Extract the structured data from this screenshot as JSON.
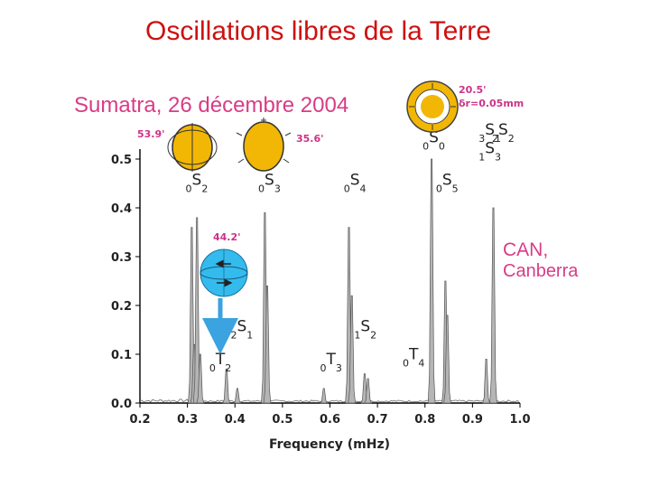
{
  "slide": {
    "title": "Oscillations libres de la Terre"
  },
  "event": {
    "title": "Sumatra, 26 décembre 2004"
  },
  "station": {
    "line1": "CAN,",
    "line2": "Canberra"
  },
  "chart_data": {
    "type": "line",
    "xlabel": "Frequency (mHz)",
    "ylabel": "",
    "xlim": [
      0.2,
      1.0
    ],
    "ylim": [
      0.0,
      0.5
    ],
    "xticks": [
      "0.2",
      "0.3",
      "0.4",
      "0.5",
      "0.6",
      "0.7",
      "0.8",
      "0.9",
      "1.0"
    ],
    "yticks": [
      "0.0",
      "0.1",
      "0.2",
      "0.3",
      "0.4",
      "0.5"
    ],
    "grid": false,
    "peaks": [
      {
        "f": 0.309,
        "a": 0.36
      },
      {
        "f": 0.314,
        "a": 0.12
      },
      {
        "f": 0.32,
        "a": 0.38
      },
      {
        "f": 0.327,
        "a": 0.1
      },
      {
        "f": 0.382,
        "a": 0.07
      },
      {
        "f": 0.405,
        "a": 0.03
      },
      {
        "f": 0.463,
        "a": 0.39
      },
      {
        "f": 0.468,
        "a": 0.24
      },
      {
        "f": 0.587,
        "a": 0.03
      },
      {
        "f": 0.64,
        "a": 0.36
      },
      {
        "f": 0.646,
        "a": 0.22
      },
      {
        "f": 0.673,
        "a": 0.06
      },
      {
        "f": 0.68,
        "a": 0.05
      },
      {
        "f": 0.814,
        "a": 0.5
      },
      {
        "f": 0.843,
        "a": 0.25
      },
      {
        "f": 0.847,
        "a": 0.18
      },
      {
        "f": 0.929,
        "a": 0.09
      },
      {
        "f": 0.944,
        "a": 0.4
      }
    ],
    "mode_labels": [
      {
        "pre": "0",
        "main": "S",
        "sub": "2",
        "f": 0.315,
        "y": 0.44
      },
      {
        "pre": "0",
        "main": "S",
        "sub": "3",
        "f": 0.468,
        "y": 0.44
      },
      {
        "pre": "0",
        "main": "S",
        "sub": "4",
        "f": 0.648,
        "y": 0.44
      },
      {
        "pre": "0",
        "main": "S",
        "sub": "5",
        "f": 0.842,
        "y": 0.44
      },
      {
        "pre": "0",
        "main": "S",
        "sub": "0",
        "f": 0.814,
        "y": 0.527
      },
      {
        "pre": "3",
        "main": "S",
        "sub": "1",
        "f": 0.932,
        "y": 0.543
      },
      {
        "pre": "2",
        "main": "S",
        "sub": "2",
        "f": 0.96,
        "y": 0.543
      },
      {
        "pre": "1",
        "main": "S",
        "sub": "3",
        "f": 0.932,
        "y": 0.505
      },
      {
        "pre": "2",
        "main": "S",
        "sub": "1",
        "f": 0.41,
        "y": 0.14
      },
      {
        "pre": "1",
        "main": "S",
        "sub": "2",
        "f": 0.67,
        "y": 0.14
      },
      {
        "pre": "0",
        "main": "T",
        "sub": "2",
        "f": 0.365,
        "y": 0.072
      },
      {
        "pre": "0",
        "main": "T",
        "sub": "3",
        "f": 0.598,
        "y": 0.072
      },
      {
        "pre": "0",
        "main": "T",
        "sub": "4",
        "f": 0.772,
        "y": 0.082
      }
    ],
    "mode_insets": [
      {
        "period": "53.9'",
        "shape": "s2"
      },
      {
        "period": "35.6'",
        "shape": "s3"
      },
      {
        "period": "44.2'",
        "shape": "t2"
      },
      {
        "period": "20.5'",
        "extra": "δr=0.05mm",
        "shape": "s0"
      }
    ]
  }
}
